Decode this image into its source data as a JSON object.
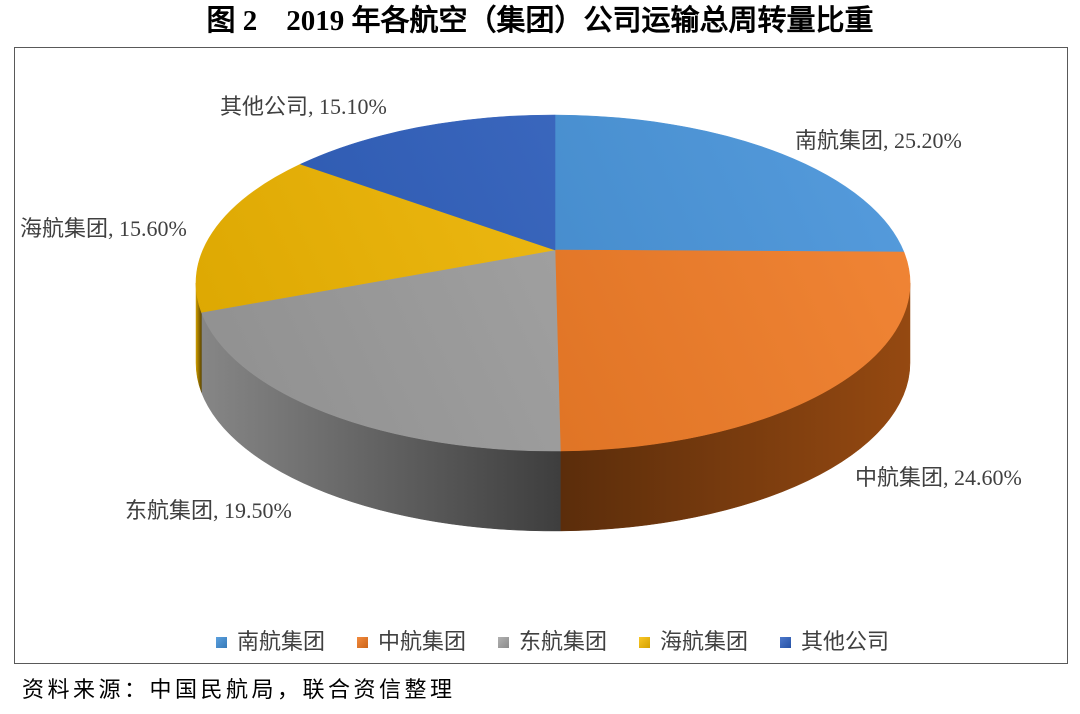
{
  "chart_data": {
    "type": "pie",
    "three_d": true,
    "title": "图 2　2019 年各航空（集团）公司运输总周转量比重",
    "categories": [
      "南航集团",
      "中航集团",
      "东航集团",
      "海航集团",
      "其他公司"
    ],
    "values": [
      25.2,
      24.6,
      19.5,
      15.6,
      15.1
    ],
    "data_labels": [
      "南航集团, 25.20%",
      "中航集团, 24.60%",
      "东航集团, 19.50%",
      "海航集团, 15.60%",
      "其他公司, 15.10%"
    ],
    "colors": [
      "#3f8fd8",
      "#f0761c",
      "#a3a3a3",
      "#f9bd00",
      "#2d60c2"
    ],
    "legend_position": "bottom"
  },
  "source_note": "资料来源：中国民航局，联合资信整理"
}
